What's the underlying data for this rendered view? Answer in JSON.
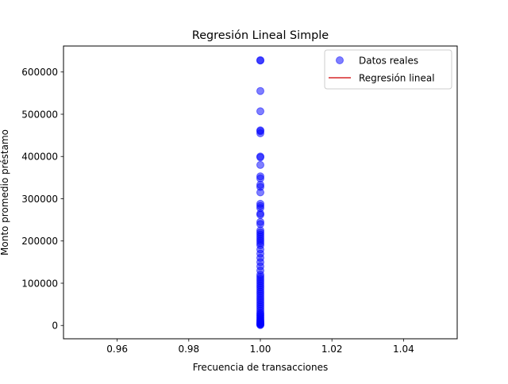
{
  "chart_data": {
    "type": "scatter",
    "title": "Regresión Lineal Simple",
    "xlabel": "Frecuencia de transacciones",
    "ylabel": "Monto promedio préstamo",
    "xlim": [
      0.945,
      1.055
    ],
    "ylim": [
      -31500,
      661500
    ],
    "xticks": [
      0.96,
      0.98,
      1.0,
      1.02,
      1.04
    ],
    "xtick_labels": [
      "0.96",
      "0.98",
      "1.00",
      "1.02",
      "1.04"
    ],
    "yticks": [
      0,
      100000,
      200000,
      300000,
      400000,
      500000,
      600000
    ],
    "ytick_labels": [
      "0",
      "100000",
      "200000",
      "300000",
      "400000",
      "500000",
      "600000"
    ],
    "grid": false,
    "legend": {
      "position": "top-right",
      "entries": [
        {
          "label": "Datos reales",
          "marker": "circle",
          "color": "#0000ff"
        },
        {
          "label": "Regresión lineal",
          "marker": "line",
          "color": "#d62728"
        }
      ]
    },
    "series": [
      {
        "name": "Datos reales",
        "color": "#0000ff",
        "x": [
          1,
          1,
          1,
          1,
          1,
          1,
          1,
          1,
          1,
          1,
          1,
          1,
          1,
          1,
          1,
          1,
          1,
          1,
          1,
          1,
          1,
          1,
          1,
          1,
          1,
          1,
          1,
          1,
          1,
          1,
          1,
          1,
          1,
          1,
          1,
          1,
          1,
          1,
          1,
          1,
          1,
          1,
          1,
          1,
          1,
          1,
          1,
          1,
          1,
          1,
          1,
          1,
          1,
          1,
          1,
          1,
          1,
          1,
          1,
          1,
          1,
          1,
          1,
          1,
          1,
          1,
          1,
          1,
          1
        ],
        "y": [
          628000,
          627000,
          555000,
          507000,
          462000,
          460000,
          455000,
          400000,
          398000,
          380000,
          353000,
          348000,
          333000,
          328000,
          315000,
          288000,
          283000,
          278000,
          265000,
          262000,
          245000,
          240000,
          225000,
          220000,
          215000,
          210000,
          205000,
          200000,
          195000,
          190000,
          180000,
          170000,
          160000,
          150000,
          140000,
          130000,
          120000,
          115000,
          110000,
          105000,
          100000,
          95000,
          90000,
          85000,
          80000,
          75000,
          70000,
          65000,
          60000,
          55000,
          50000,
          45000,
          40000,
          35000,
          30000,
          27000,
          24000,
          21000,
          18000,
          15000,
          12000,
          10000,
          8000,
          6000,
          5000,
          4000,
          3000,
          2000,
          1000
        ]
      },
      {
        "name": "Regresión lineal",
        "color": "#d62728",
        "x": [],
        "y": []
      }
    ]
  }
}
